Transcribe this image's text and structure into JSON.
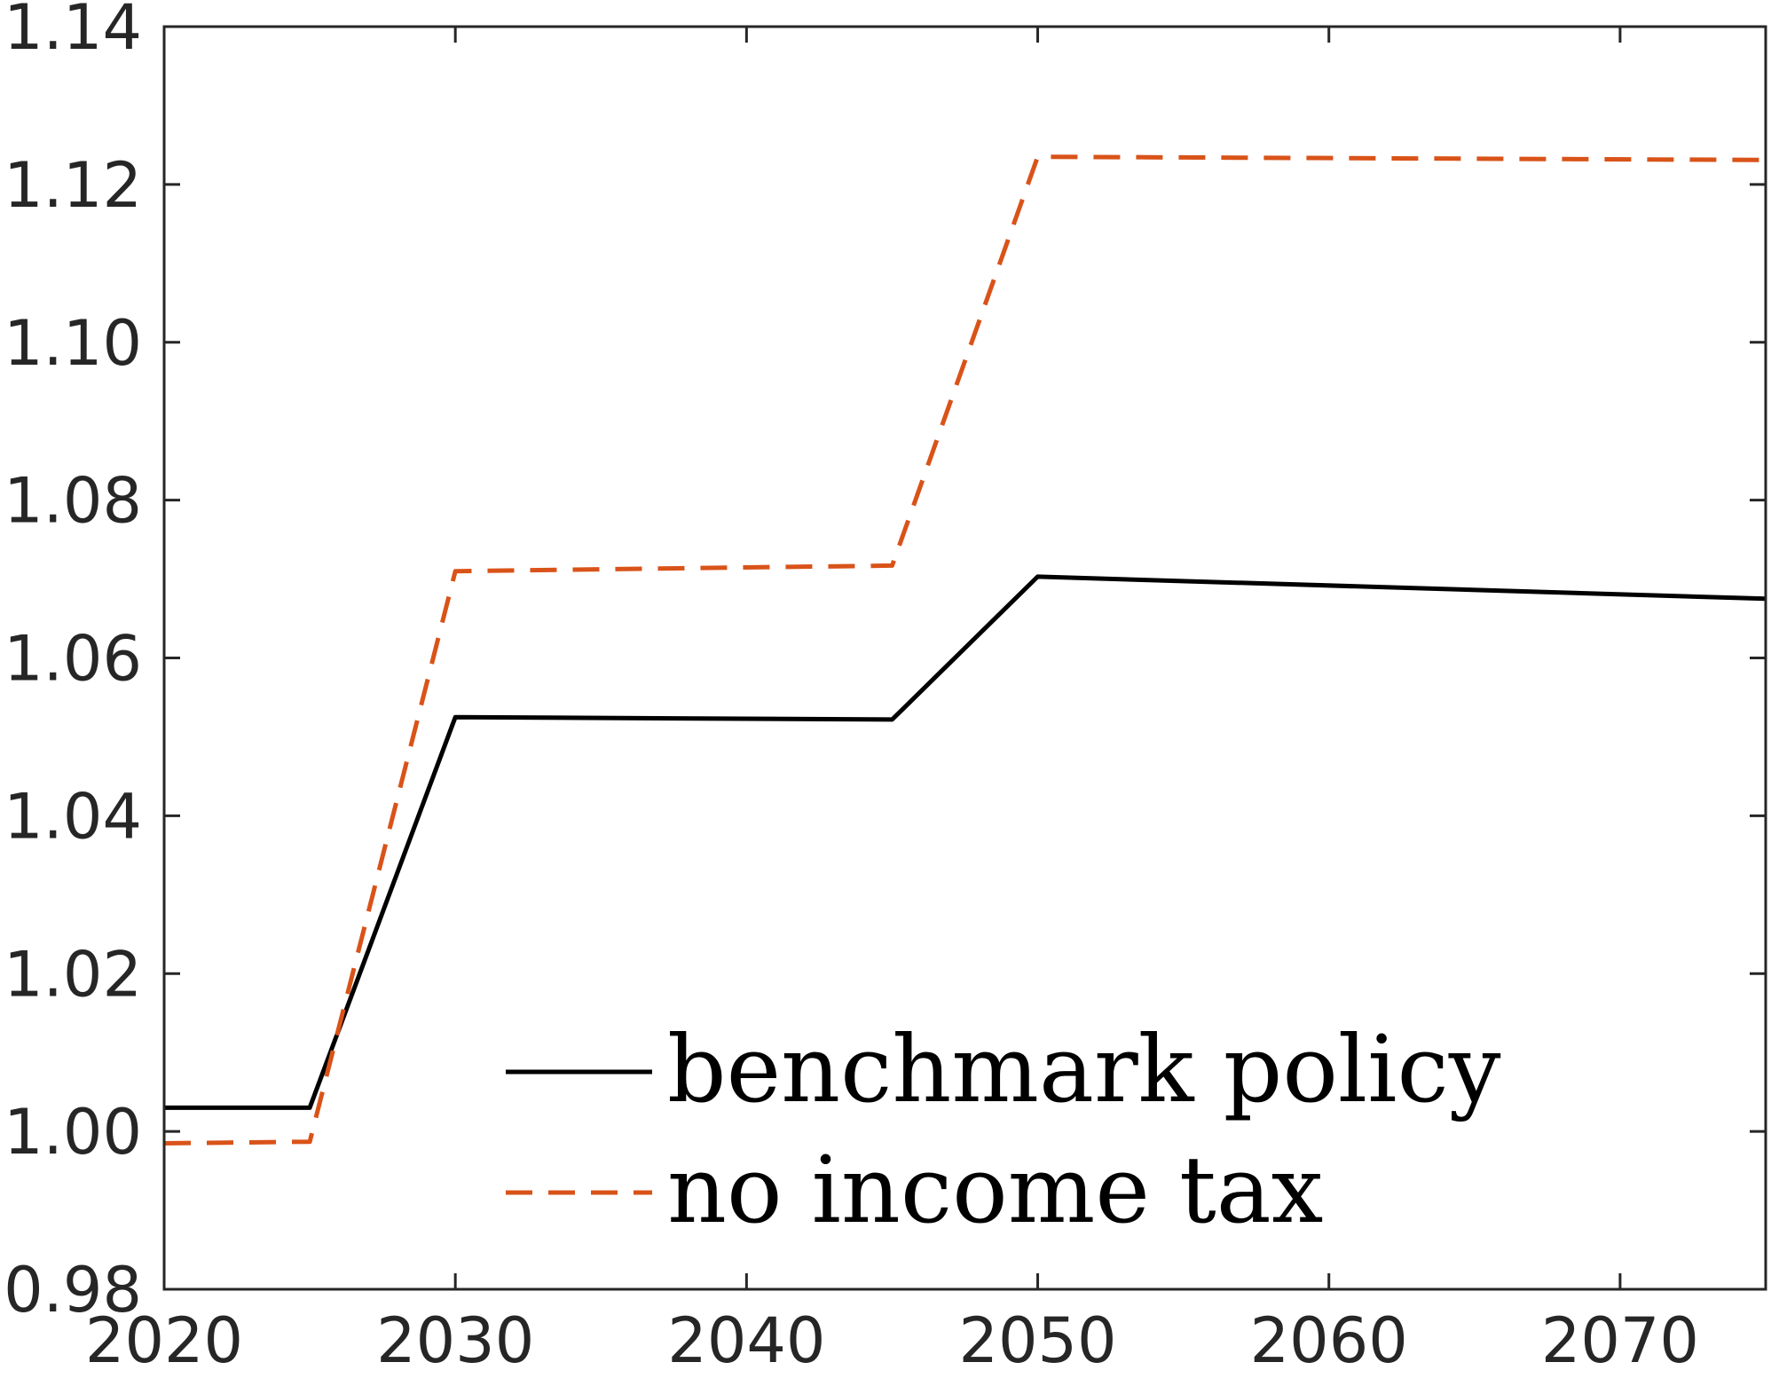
{
  "chart_data": {
    "type": "line",
    "title": "",
    "xlabel": "",
    "ylabel": "",
    "xlim": [
      2020,
      2075
    ],
    "ylim": [
      0.98,
      1.14
    ],
    "xticks": [
      2020,
      2030,
      2040,
      2050,
      2060,
      2070
    ],
    "xtick_labels": [
      "2020",
      "2030",
      "2040",
      "2050",
      "2060",
      "2070"
    ],
    "yticks": [
      0.98,
      1.0,
      1.02,
      1.04,
      1.06,
      1.08,
      1.1,
      1.12,
      1.14
    ],
    "ytick_labels": [
      "0.98",
      "1.00",
      "1.02",
      "1.04",
      "1.06",
      "1.08",
      "1.10",
      "1.12",
      "1.14"
    ],
    "grid": false,
    "legend_position": "bottom-center",
    "series": [
      {
        "name": "benchmark policy",
        "color": "#000000",
        "style": "solid",
        "x": [
          2020,
          2025,
          2030,
          2045,
          2050,
          2075
        ],
        "y": [
          1.003,
          1.003,
          1.0525,
          1.0522,
          1.0703,
          1.0675
        ]
      },
      {
        "name": "no income tax",
        "color": "#D95319",
        "style": "dashed",
        "x": [
          2020,
          2025,
          2030,
          2045,
          2050,
          2075
        ],
        "y": [
          0.9985,
          0.9987,
          1.071,
          1.0717,
          1.1235,
          1.1231
        ]
      }
    ]
  }
}
